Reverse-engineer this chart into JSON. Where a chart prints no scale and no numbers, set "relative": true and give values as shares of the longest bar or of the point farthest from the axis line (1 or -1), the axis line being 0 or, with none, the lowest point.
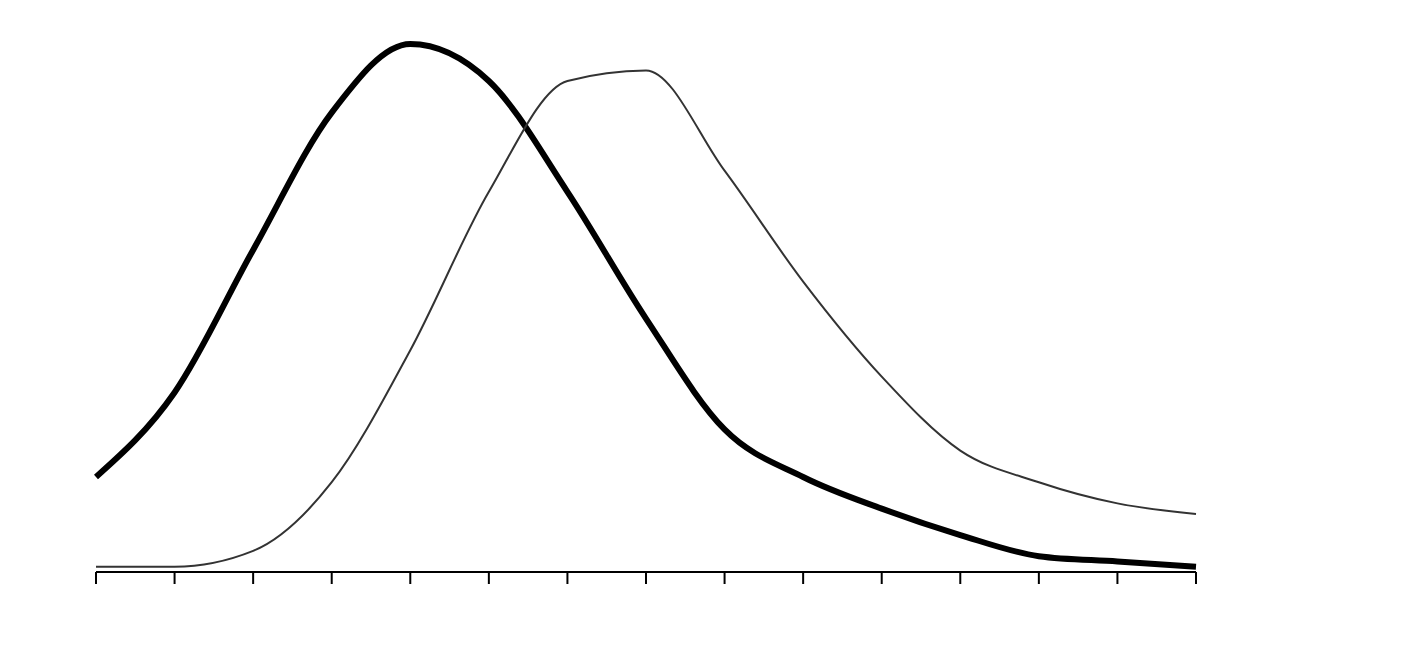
{
  "chart_data": {
    "type": "line",
    "relative": true,
    "categories": [
      null,
      null,
      null,
      null,
      null,
      null,
      null,
      null,
      null,
      null,
      null,
      null,
      null,
      null,
      null
    ],
    "series": [
      {
        "color": "#000000",
        "values": [
          0.18,
          0.34,
          0.61,
          0.87,
          1,
          0.93,
          0.72,
          0.48,
          0.27,
          0.18,
          0.12,
          0.07,
          0.03,
          0.02,
          0.01
        ]
      },
      {
        "color": "#333333",
        "values": [
          0.01,
          0.01,
          0.04,
          0.17,
          0.42,
          0.72,
          0.93,
          0.95,
          0.76,
          0.55,
          0.37,
          0.23,
          0.17,
          0.13,
          0.11
        ]
      }
    ],
    "marker": "none",
    "line_style": "solid"
  }
}
